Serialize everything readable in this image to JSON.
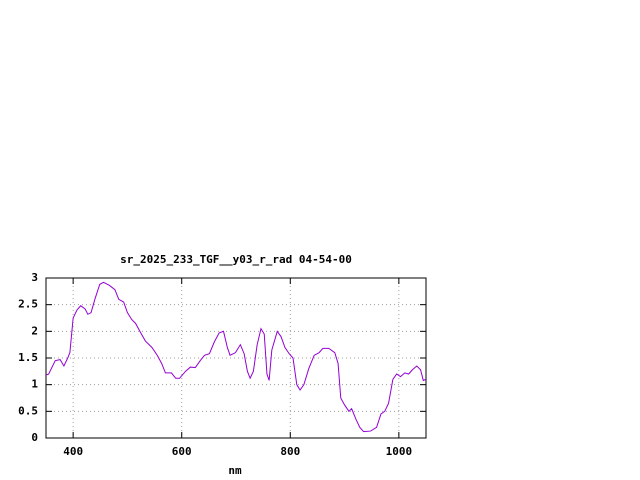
{
  "chart_data": {
    "type": "line",
    "title": "sr_2025_233_TGF__y03_r_rad 04-54-00",
    "x_label": "nm",
    "x": [
      350,
      355,
      367,
      376,
      383,
      390,
      394,
      400,
      407,
      414,
      422,
      427,
      433,
      440,
      449,
      456,
      467,
      477,
      484,
      493,
      500,
      508,
      515,
      524,
      533,
      545,
      555,
      563,
      570,
      581,
      589,
      596,
      607,
      616,
      625,
      634,
      642,
      651,
      660,
      669,
      677,
      684,
      689,
      699,
      708,
      715,
      721,
      726,
      732,
      739,
      746,
      752,
      757,
      761,
      766,
      776,
      783,
      790,
      798,
      805,
      812,
      818,
      825,
      834,
      844,
      853,
      860,
      871,
      882,
      888,
      893,
      900,
      908,
      913,
      921,
      928,
      935,
      948,
      959,
      967,
      974,
      981,
      989,
      996,
      1003,
      1011,
      1018,
      1025,
      1033,
      1040,
      1045,
      1050
    ],
    "series": [
      {
        "color": "#9400d3",
        "values": [
          1.18,
          1.2,
          1.45,
          1.47,
          1.35,
          1.5,
          1.6,
          2.25,
          2.4,
          2.48,
          2.42,
          2.32,
          2.35,
          2.6,
          2.88,
          2.92,
          2.86,
          2.78,
          2.6,
          2.55,
          2.35,
          2.22,
          2.15,
          1.98,
          1.82,
          1.7,
          1.55,
          1.4,
          1.22,
          1.22,
          1.12,
          1.12,
          1.25,
          1.33,
          1.32,
          1.45,
          1.55,
          1.58,
          1.8,
          1.97,
          2.0,
          1.7,
          1.55,
          1.6,
          1.75,
          1.58,
          1.25,
          1.12,
          1.25,
          1.75,
          2.05,
          1.95,
          1.2,
          1.08,
          1.65,
          2.0,
          1.9,
          1.7,
          1.58,
          1.5,
          1.0,
          0.9,
          1.0,
          1.3,
          1.55,
          1.6,
          1.68,
          1.68,
          1.6,
          1.4,
          0.75,
          0.62,
          0.5,
          0.55,
          0.35,
          0.2,
          0.12,
          0.13,
          0.2,
          0.45,
          0.5,
          0.65,
          1.1,
          1.2,
          1.15,
          1.22,
          1.2,
          1.28,
          1.35,
          1.28,
          1.08,
          1.1
        ]
      }
    ],
    "xlim": [
      350,
      1050
    ],
    "ylim": [
      0,
      3
    ],
    "xticks": [
      400,
      600,
      800,
      1000
    ],
    "yticks": [
      0,
      0.5,
      1,
      1.5,
      2,
      2.5,
      3
    ],
    "grid": true
  }
}
